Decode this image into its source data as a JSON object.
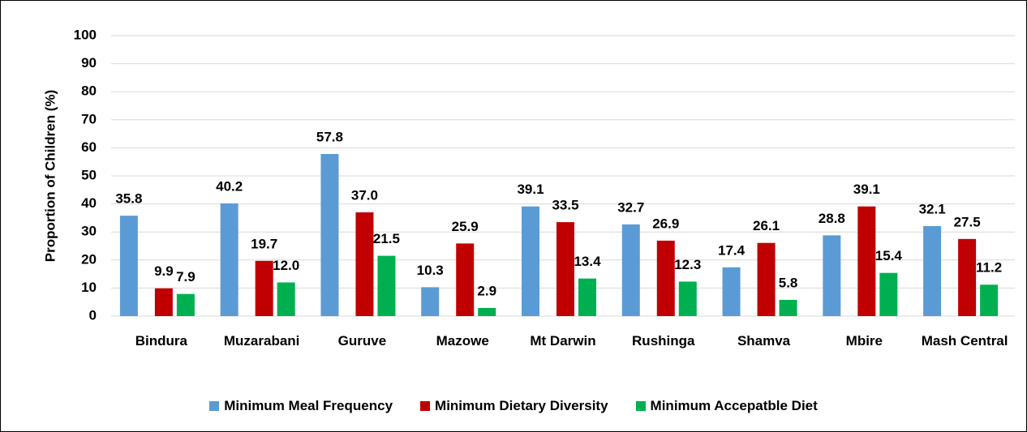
{
  "chart_data": {
    "type": "bar",
    "y_label": "Proportion of Children (%)",
    "categories": [
      "Bindura",
      "Muzarabani",
      "Guruve",
      "Mazowe",
      "Mt Darwin",
      "Rushinga",
      "Shamva",
      "Mbire",
      "Mash Central"
    ],
    "series": [
      {
        "name": "Minimum Meal Frequency",
        "color": "#5b9bd5",
        "values": [
          35.8,
          40.2,
          57.8,
          10.3,
          39.1,
          32.7,
          17.4,
          28.8,
          32.1
        ],
        "value_labels": [
          "35.8",
          "40.2",
          "57.8",
          "10.3",
          "39.1",
          "32.7",
          "17.4",
          "28.8",
          "32.1"
        ]
      },
      {
        "name": "Minimum Dietary Diversity",
        "color": "#c00000",
        "values": [
          9.9,
          19.7,
          37.0,
          25.9,
          33.5,
          26.9,
          26.1,
          39.1,
          27.5
        ],
        "value_labels": [
          "9.9",
          "19.7",
          "37.0",
          "25.9",
          "33.5",
          "26.9",
          "26.1",
          "39.1",
          "27.5"
        ]
      },
      {
        "name": "Minimum Accepatble Diet",
        "color": "#00b050",
        "values": [
          7.9,
          12.0,
          21.5,
          2.9,
          13.4,
          12.3,
          5.8,
          15.4,
          11.2
        ],
        "value_labels": [
          "7.9",
          "12.0",
          "21.5",
          "2.9",
          "13.4",
          "12.3",
          "5.8",
          "15.4",
          "11.2"
        ]
      }
    ],
    "ylim": [
      0,
      100
    ],
    "yticks": [
      0,
      10,
      20,
      30,
      40,
      50,
      60,
      70,
      80,
      90,
      100
    ],
    "grid": true,
    "legend": "bottom"
  }
}
